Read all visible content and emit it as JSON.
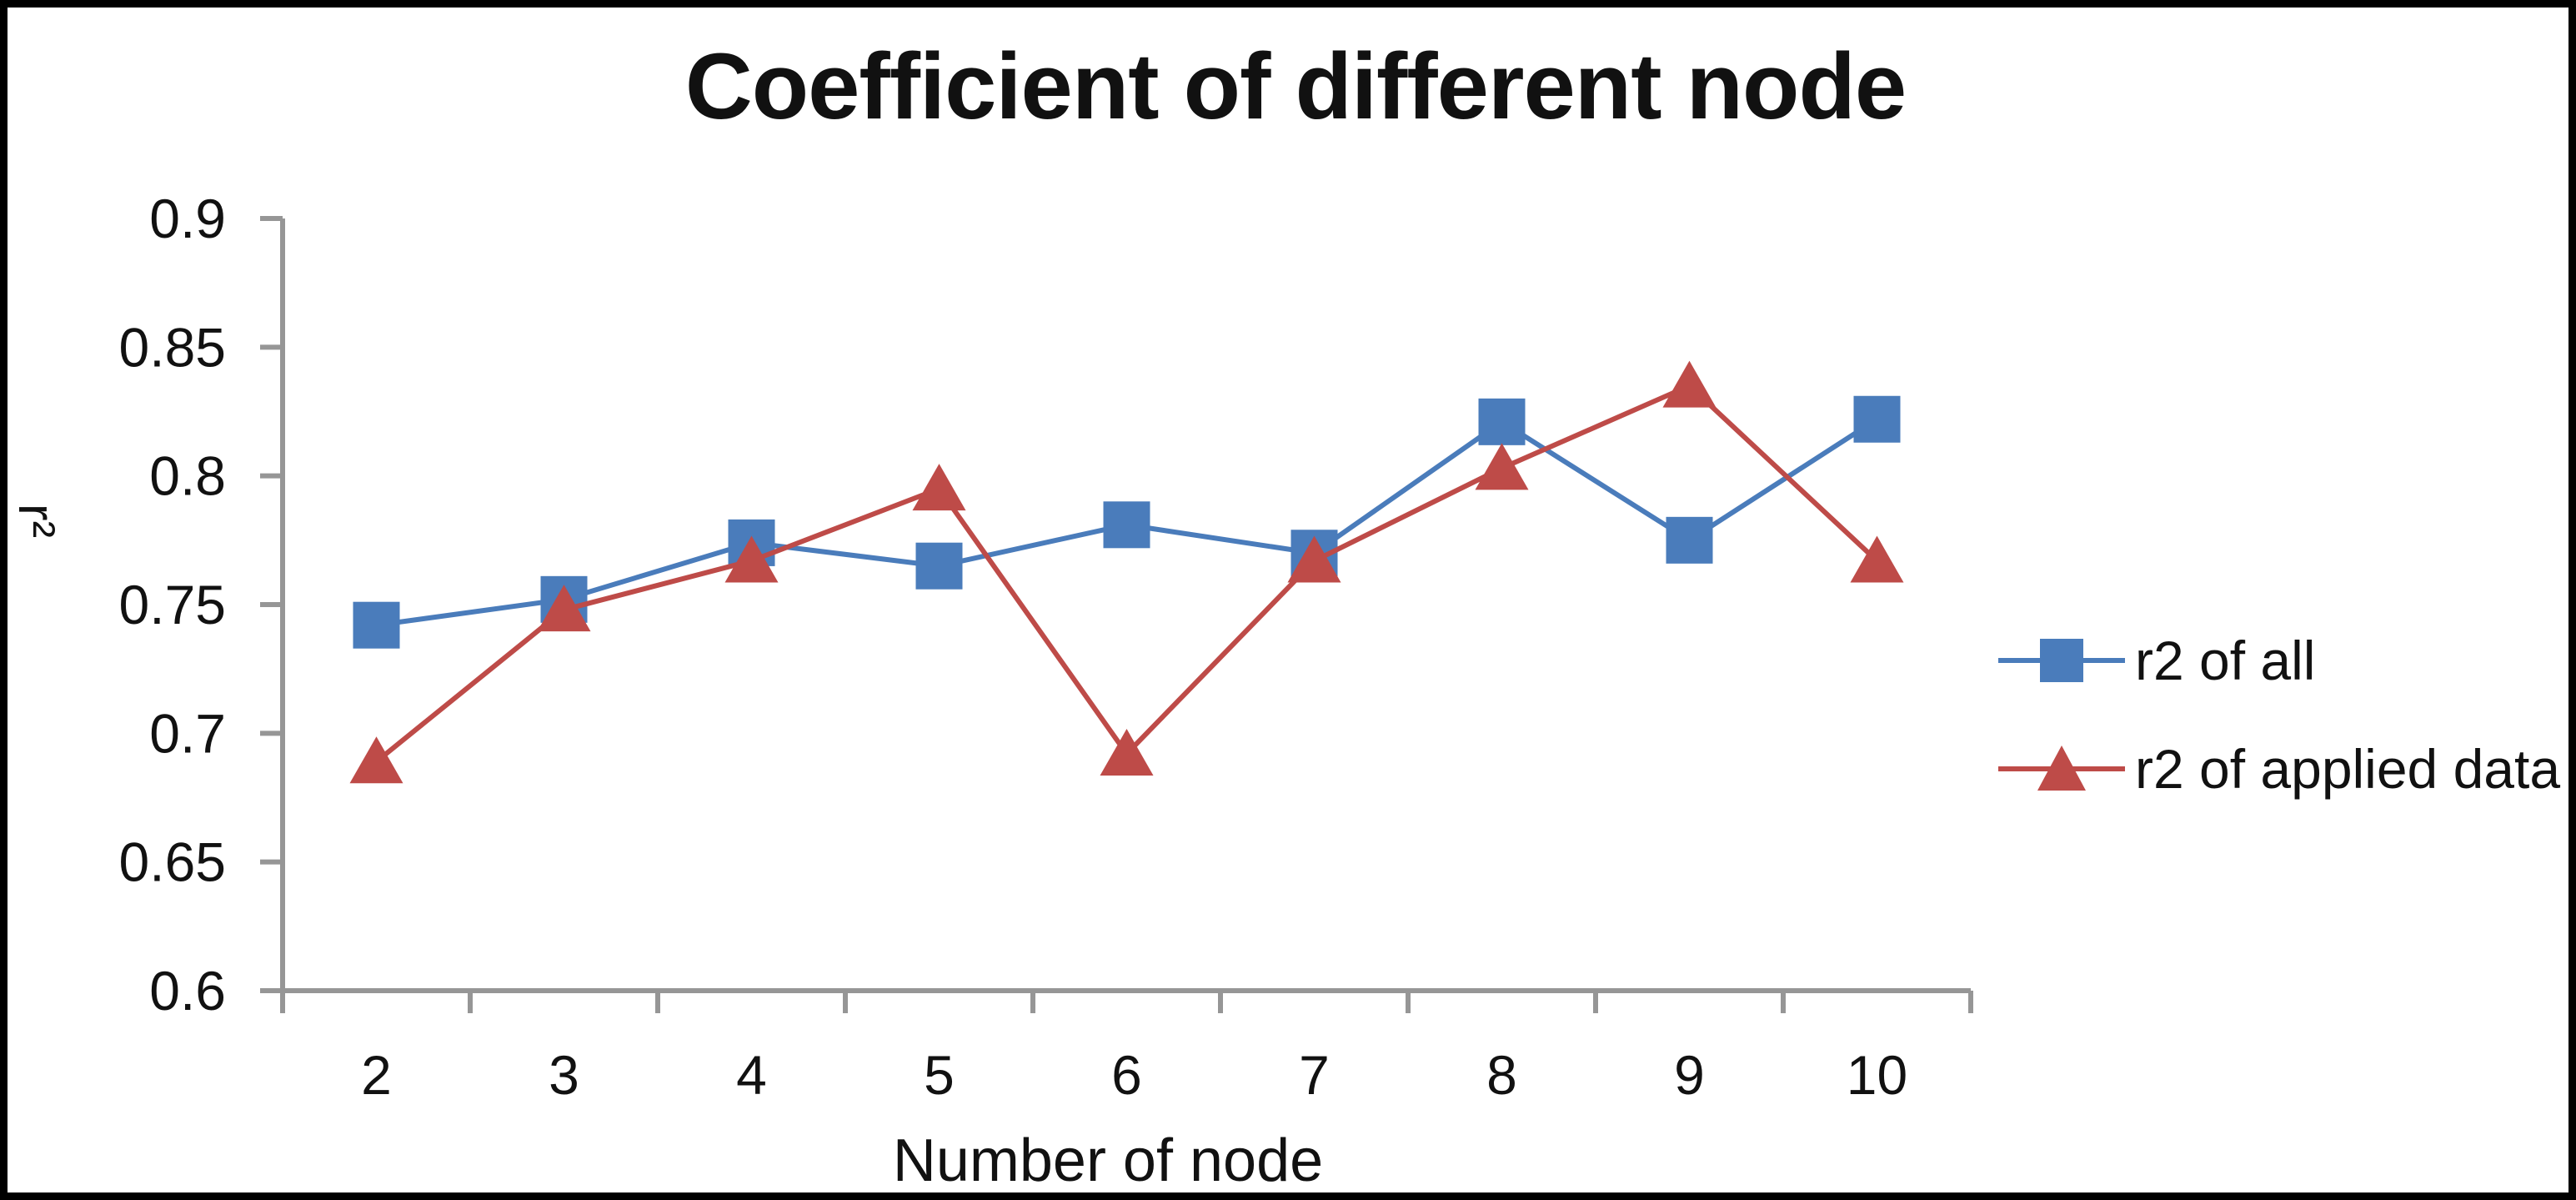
{
  "window": {
    "background_color": "#ffffff",
    "frame_color": "#000000"
  },
  "chart_data": {
    "type": "line",
    "title": "Coefficient of different node",
    "xlabel": "Number of node",
    "ylabel": "r²",
    "categories": [
      2,
      3,
      4,
      5,
      6,
      7,
      8,
      9,
      10
    ],
    "x_tick_labels": [
      "2",
      "3",
      "4",
      "5",
      "6",
      "7",
      "8",
      "9",
      "10"
    ],
    "series": [
      {
        "name": "r2 of all",
        "marker": "square",
        "color": "#4A7CBB",
        "values": [
          0.742,
          0.752,
          0.774,
          0.765,
          0.781,
          0.77,
          0.821,
          0.775,
          0.822
        ]
      },
      {
        "name": "r2 of applied data",
        "marker": "triangle",
        "color": "#BE4B48",
        "values": [
          0.689,
          0.748,
          0.767,
          0.795,
          0.692,
          0.767,
          0.803,
          0.835,
          0.767
        ]
      }
    ],
    "ylim": [
      0.6,
      0.9
    ],
    "y_ticks": [
      0.9,
      0.85,
      0.8,
      0.75,
      0.7,
      0.65,
      0.6
    ],
    "y_tick_labels": [
      "0.9",
      "0.85",
      "0.8",
      "0.75",
      "0.7",
      "0.65",
      "0.6"
    ],
    "grid": false,
    "legend_position": "right",
    "axis_color": "#969696",
    "text_color": "#111111"
  }
}
